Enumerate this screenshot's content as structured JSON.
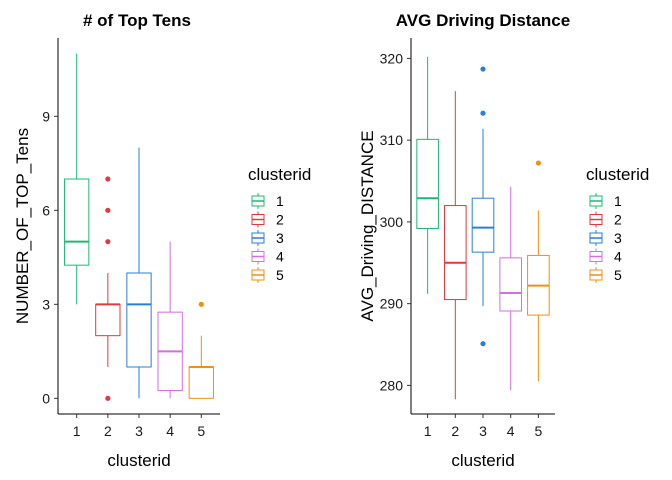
{
  "chart_data": [
    {
      "type": "boxplot",
      "title": "# of Top Tens",
      "xlabel": "clusterid",
      "ylabel": "NUMBER_OF_TOP_Tens",
      "categories": [
        "1",
        "2",
        "3",
        "4",
        "5"
      ],
      "y_ticks": [
        0,
        3,
        6,
        9
      ],
      "ylim": [
        -0.5,
        11.5
      ],
      "boxes": [
        {
          "group": "1",
          "whisker_low": 3,
          "q1": 4.25,
          "median": 5,
          "q3": 7,
          "whisker_high": 11,
          "outliers": []
        },
        {
          "group": "2",
          "whisker_low": 1,
          "q1": 2,
          "median": 3,
          "q3": 3,
          "whisker_high": 4,
          "outliers": [
            0,
            5,
            6,
            7
          ]
        },
        {
          "group": "3",
          "whisker_low": 0,
          "q1": 1,
          "median": 3,
          "q3": 4,
          "whisker_high": 8,
          "outliers": []
        },
        {
          "group": "4",
          "whisker_low": 0,
          "q1": 0.25,
          "median": 1.5,
          "q3": 2.75,
          "whisker_high": 5,
          "outliers": []
        },
        {
          "group": "5",
          "whisker_low": 0,
          "q1": 0,
          "median": 1,
          "q3": 1,
          "whisker_high": 2,
          "outliers": [
            3
          ]
        }
      ],
      "legend": {
        "title": "clusterid",
        "entries": [
          "1",
          "2",
          "3",
          "4",
          "5"
        ],
        "position": "right"
      }
    },
    {
      "type": "boxplot",
      "title": "AVG Driving Distance",
      "xlabel": "clusterid",
      "ylabel": "AVG_Driving_DISTANCE",
      "categories": [
        "1",
        "2",
        "3",
        "4",
        "5"
      ],
      "y_ticks": [
        280,
        290,
        300,
        310,
        320
      ],
      "ylim": [
        276.5,
        322.5
      ],
      "boxes": [
        {
          "group": "1",
          "whisker_low": 291.2,
          "q1": 299.2,
          "median": 302.9,
          "q3": 310.1,
          "whisker_high": 320.2,
          "outliers": []
        },
        {
          "group": "2",
          "whisker_low": 278.3,
          "q1": 290.5,
          "median": 295.0,
          "q3": 302.0,
          "whisker_high": 316.0,
          "outliers": []
        },
        {
          "group": "3",
          "whisker_low": 289.7,
          "q1": 296.3,
          "median": 299.3,
          "q3": 302.9,
          "whisker_high": 311.4,
          "outliers": [
            285.1,
            313.3,
            318.7
          ]
        },
        {
          "group": "4",
          "whisker_low": 279.4,
          "q1": 289.1,
          "median": 291.3,
          "q3": 295.6,
          "whisker_high": 304.3,
          "outliers": []
        },
        {
          "group": "5",
          "whisker_low": 280.5,
          "q1": 288.6,
          "median": 292.2,
          "q3": 295.9,
          "whisker_high": 301.4,
          "outliers": [
            307.2
          ]
        }
      ],
      "legend": {
        "title": "clusterid",
        "entries": [
          "1",
          "2",
          "3",
          "4",
          "5"
        ],
        "position": "right"
      }
    }
  ],
  "colors": {
    "1": "#1cb873",
    "2": "#e0393e",
    "3": "#2a7fd4",
    "4": "#d46fe0",
    "5": "#f0900e"
  }
}
